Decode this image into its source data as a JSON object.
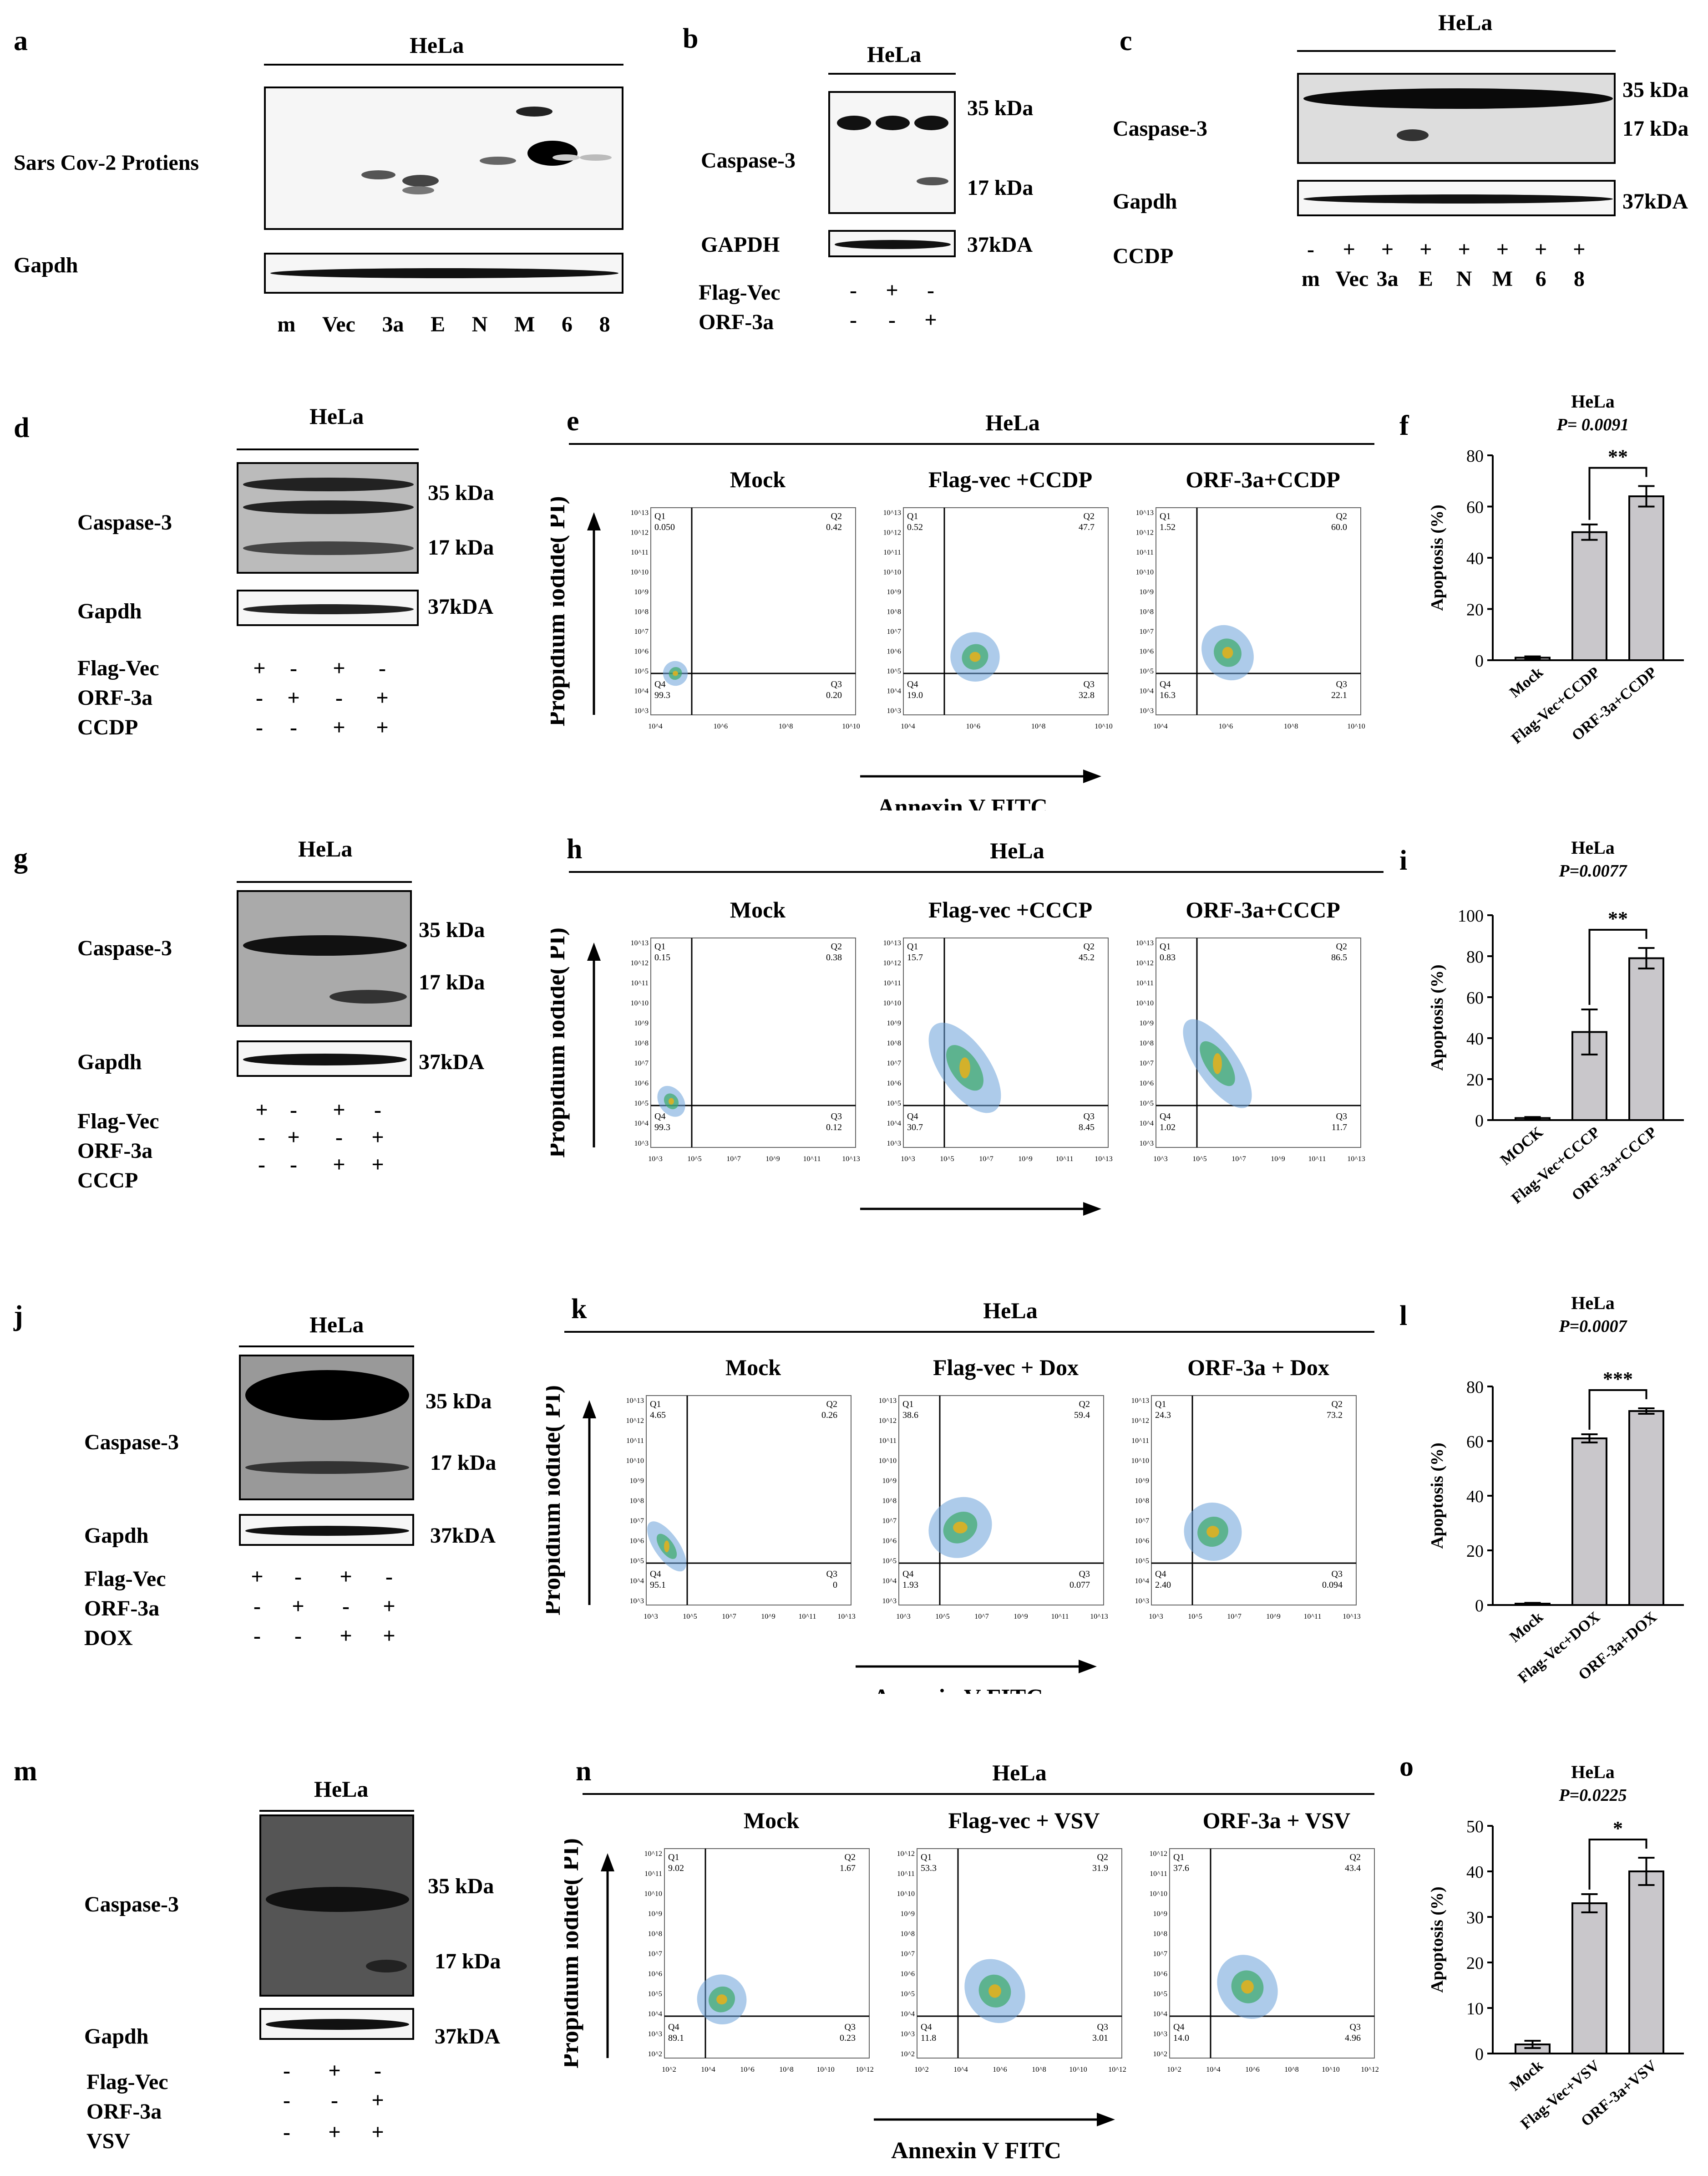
{
  "panel_letters": {
    "a": "a",
    "b": "b",
    "c": "c",
    "d": "d",
    "e": "e",
    "f": "f",
    "g": "g",
    "h": "h",
    "i": "i",
    "j": "j",
    "k": "k",
    "l": "l",
    "m": "m",
    "n": "n",
    "o": "o"
  },
  "cell_line": "HeLa",
  "a": {
    "row1": "Sars Cov-2 Protiens",
    "row2": "Gapdh",
    "lanes": [
      "m",
      "Vec",
      "3a",
      "E",
      "N",
      "M",
      "6",
      "8"
    ]
  },
  "b": {
    "row1": "Caspase-3",
    "row2": "GAPDH",
    "kda1": "35 kDa",
    "kda2": "17 kDa",
    "kda3": "37kDA",
    "cond1": "Flag-Vec",
    "cond2": "ORF-3a",
    "signs1": [
      "-",
      "+",
      "-"
    ],
    "signs2": [
      "-",
      "-",
      "+"
    ]
  },
  "c": {
    "row1": "Caspase-3",
    "row2": "Gapdh",
    "cond": "CCDP",
    "kda1": "35 kDa",
    "kda2": "17 kDa",
    "kda3": "37kDA",
    "signs": [
      "-",
      "+",
      "+",
      "+",
      "+",
      "+",
      "+",
      "+"
    ],
    "lanes": [
      "m",
      "Vec",
      "3a",
      "E",
      "N",
      "M",
      "6",
      "8"
    ]
  },
  "d": {
    "row1": "Caspase-3",
    "row2": "Gapdh",
    "kda1": "35 kDa",
    "kda2": "17 kDa",
    "kda3": "37kDA",
    "cond1": "Flag-Vec",
    "cond2": "ORF-3a",
    "cond3": "CCDP",
    "signs1": [
      "+",
      "-",
      "+",
      "-"
    ],
    "signs2": [
      "-",
      "+",
      "-",
      "+"
    ],
    "signs3": [
      "-",
      "-",
      "+",
      "+"
    ]
  },
  "g": {
    "row1": "Caspase-3",
    "row2": "Gapdh",
    "kda1": "35 kDa",
    "kda2": "17 kDa",
    "kda3": "37kDA",
    "cond1": "Flag-Vec",
    "cond2": "ORF-3a",
    "cond3": "CCCP",
    "signs1": [
      "+",
      "-",
      "+",
      "-"
    ],
    "signs2": [
      "-",
      "+",
      "-",
      "+"
    ],
    "signs3": [
      "-",
      "-",
      "+",
      "+"
    ]
  },
  "j": {
    "row1": "Caspase-3",
    "row2": "Gapdh",
    "kda1": "35 kDa",
    "kda2": "17 kDa",
    "kda3": "37kDA",
    "cond1": "Flag-Vec",
    "cond2": "ORF-3a",
    "cond3": "DOX",
    "signs1": [
      "+",
      "-",
      "+",
      "-"
    ],
    "signs2": [
      "-",
      "+",
      "-",
      "+"
    ],
    "signs3": [
      "-",
      "-",
      "+",
      "+"
    ]
  },
  "m": {
    "row1": "Caspase-3",
    "row2": "Gapdh",
    "kda1": "35 kDa",
    "kda2": "17 kDa",
    "kda3": "37kDA",
    "cond1": "Flag-Vec",
    "cond2": "ORF-3a",
    "cond3": "VSV",
    "signs1": [
      "-",
      "+",
      "-"
    ],
    "signs2": [
      "-",
      "-",
      "+"
    ],
    "signs3": [
      "-",
      "+",
      "+"
    ]
  },
  "flow": {
    "ylabel": "Propidium iodide( PI)",
    "xlabel": "Annexin V FITC",
    "e": {
      "titles": [
        "Mock",
        "Flag-vec +CCDP",
        "ORF-3a+CCDP"
      ],
      "plots": [
        {
          "q1": "0.050",
          "q2": "0.42",
          "q3": "0.20",
          "q4": "99.3"
        },
        {
          "q1": "0.52",
          "q2": "47.7",
          "q3": "32.8",
          "q4": "19.0"
        },
        {
          "q1": "1.52",
          "q2": "60.0",
          "q3": "22.1",
          "q4": "16.3"
        }
      ],
      "yticks": [
        "10^13",
        "10^12",
        "10^11",
        "10^10",
        "10^9",
        "10^8",
        "10^7",
        "10^6",
        "10^5",
        "10^4",
        "10^3"
      ],
      "xticks": [
        "10^4",
        "10^6",
        "10^8",
        "10^10"
      ]
    },
    "h": {
      "titles": [
        "Mock",
        "Flag-vec +CCCP",
        "ORF-3a+CCCP"
      ],
      "plots": [
        {
          "q1": "0.15",
          "q2": "0.38",
          "q3": "0.12",
          "q4": "99.3"
        },
        {
          "q1": "15.7",
          "q2": "45.2",
          "q3": "8.45",
          "q4": "30.7"
        },
        {
          "q1": "0.83",
          "q2": "86.5",
          "q3": "11.7",
          "q4": "1.02"
        }
      ],
      "yticks": [
        "10^13",
        "10^12",
        "10^11",
        "10^10",
        "10^9",
        "10^8",
        "10^7",
        "10^6",
        "10^5",
        "10^4",
        "10^3"
      ],
      "xticks": [
        "10^3",
        "10^5",
        "10^7",
        "10^9",
        "10^11",
        "10^13"
      ]
    },
    "k": {
      "titles": [
        "Mock",
        "Flag-vec + Dox",
        "ORF-3a + Dox"
      ],
      "plots": [
        {
          "q1": "4.65",
          "q2": "0.26",
          "q3": "0",
          "q4": "95.1"
        },
        {
          "q1": "38.6",
          "q2": "59.4",
          "q3": "0.077",
          "q4": "1.93"
        },
        {
          "q1": "24.3",
          "q2": "73.2",
          "q3": "0.094",
          "q4": "2.40"
        }
      ],
      "yticks": [
        "10^13",
        "10^12",
        "10^11",
        "10^10",
        "10^9",
        "10^8",
        "10^7",
        "10^6",
        "10^5",
        "10^4",
        "10^3"
      ],
      "xticks": [
        "10^3",
        "10^5",
        "10^7",
        "10^9",
        "10^11",
        "10^13"
      ]
    },
    "n": {
      "titles": [
        "Mock",
        "Flag-vec + VSV",
        "ORF-3a + VSV"
      ],
      "plots": [
        {
          "q1": "9.02",
          "q2": "1.67",
          "q3": "0.23",
          "q4": "89.1"
        },
        {
          "q1": "53.3",
          "q2": "31.9",
          "q3": "3.01",
          "q4": "11.8"
        },
        {
          "q1": "37.6",
          "q2": "43.4",
          "q3": "4.96",
          "q4": "14.0"
        }
      ],
      "yticks": [
        "10^12",
        "10^11",
        "10^10",
        "10^9",
        "10^8",
        "10^7",
        "10^6",
        "10^5",
        "10^4",
        "10^3",
        "10^2"
      ],
      "xticks": [
        "10^2",
        "10^4",
        "10^6",
        "10^8",
        "10^10",
        "10^12"
      ]
    }
  },
  "chart_data": [
    {
      "id": "f",
      "type": "bar",
      "title": "HeLa",
      "pvalue": "P= 0.0091",
      "significance": "**",
      "categories": [
        "Mock",
        "Flag-Vec+CCDP",
        "ORF-3a+CCDP"
      ],
      "values": [
        1,
        50,
        64
      ],
      "errors": [
        0.5,
        3,
        4
      ],
      "ylabel": "Apoptosis (%)",
      "ylim": [
        0,
        80
      ],
      "yticks": [
        0,
        20,
        40,
        60,
        80
      ]
    },
    {
      "id": "i",
      "type": "bar",
      "title": "HeLa",
      "pvalue": "P=0.0077",
      "significance": "**",
      "categories": [
        "MOCK",
        "Flag-Vec+CCCP",
        "ORF-3a+CCCP"
      ],
      "values": [
        1,
        43,
        79
      ],
      "errors": [
        0.5,
        11,
        5
      ],
      "ylabel": "Apoptosis (%)",
      "ylim": [
        0,
        100
      ],
      "yticks": [
        0,
        20,
        40,
        60,
        80,
        100
      ]
    },
    {
      "id": "l",
      "type": "bar",
      "title": "HeLa",
      "pvalue": "P=0.0007",
      "significance": "***",
      "categories": [
        "Mock",
        "Flag-Vec+DOX",
        "ORF-3a+DOX"
      ],
      "values": [
        0.5,
        61,
        71
      ],
      "errors": [
        0.3,
        1.5,
        1
      ],
      "ylabel": "Apoptosis (%)",
      "ylim": [
        0,
        80
      ],
      "yticks": [
        0,
        20,
        40,
        60,
        80
      ]
    },
    {
      "id": "o",
      "type": "bar",
      "title": "HeLa",
      "pvalue": "P=0.0225",
      "significance": "*",
      "categories": [
        "Mock",
        "Flag-Vec+VSV",
        "ORF-3a+VSV"
      ],
      "values": [
        2,
        33,
        40
      ],
      "errors": [
        0.8,
        2,
        3
      ],
      "ylabel": "Apoptosis (%)",
      "ylim": [
        0,
        50
      ],
      "yticks": [
        0,
        10,
        20,
        30,
        40,
        50
      ]
    }
  ]
}
